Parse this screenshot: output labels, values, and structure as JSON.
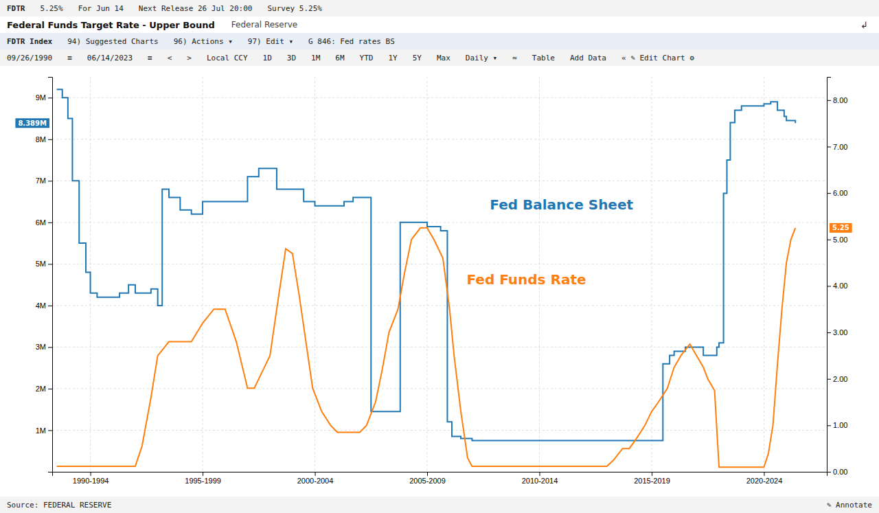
{
  "chart_data": {
    "type": "line",
    "title": "Federal Funds Target Rate - Upper Bound",
    "subtitle": "Federal Reserve",
    "annotations": [
      [
        "FDTR",
        "5.25%",
        "For Jun 14",
        "Next Release  26 Jul 20:00",
        "Survey  5.25%"
      ],
      [
        "↲"
      ],
      [
        "FDTR Index",
        "94) Suggested Charts",
        "96) Actions ▾",
        "97) Edit ▾",
        "G 846: Fed rates BS"
      ],
      [
        "09/26/1990",
        "≡",
        "06/14/2023",
        "≡",
        "<",
        ">",
        "Local CCY",
        "1D",
        "3D",
        "1M",
        "6M",
        "YTD",
        "1Y",
        "5Y",
        "Max",
        "Daily ▾",
        "≈",
        "Table",
        "Add Data",
        "«  ✎ Edit Chart  ⚙"
      ],
      [
        "Source: FEDERAL RESERVE",
        "✎ Annotate"
      ]
    ],
    "value_boxes": [
      {
        "text": "8.389M",
        "value": 8.389,
        "axis": "y"
      },
      {
        "text": "5.25",
        "value": 5.25,
        "axis": "y2"
      }
    ],
    "grid": true,
    "xlim": [
      1990.3,
      2024.8
    ],
    "xticks": [
      {
        "value": 1992,
        "label": "1990-1994"
      },
      {
        "value": 1997,
        "label": "1995-1999"
      },
      {
        "value": 2002,
        "label": "2000-2004"
      },
      {
        "value": 2007,
        "label": "2005-2009"
      },
      {
        "value": 2012,
        "label": "2010-2014"
      },
      {
        "value": 2017,
        "label": "2015-2019"
      },
      {
        "value": 2022,
        "label": "2020-2024"
      }
    ],
    "ylim": [
      0,
      9.5
    ],
    "yticks": [
      {
        "value": 1,
        "label": "1M"
      },
      {
        "value": 2,
        "label": "2M"
      },
      {
        "value": 3,
        "label": "3M"
      },
      {
        "value": 4,
        "label": "4M"
      },
      {
        "value": 5,
        "label": "5M"
      },
      {
        "value": 6,
        "label": "6M"
      },
      {
        "value": 7,
        "label": "7M"
      },
      {
        "value": 8,
        "label": "8M"
      },
      {
        "value": 9,
        "label": "9M"
      }
    ],
    "y2lim": [
      0,
      8.5
    ],
    "y2ticks": [
      {
        "value": 0,
        "label": "0.00"
      },
      {
        "value": 1,
        "label": "1.00"
      },
      {
        "value": 2,
        "label": "2.00"
      },
      {
        "value": 3,
        "label": "3.00"
      },
      {
        "value": 4,
        "label": "4.00"
      },
      {
        "value": 5,
        "label": "5.00"
      },
      {
        "value": 6,
        "label": "6.00"
      },
      {
        "value": 7,
        "label": "7.00"
      },
      {
        "value": 8,
        "label": "8.00"
      }
    ],
    "series": [
      {
        "name": "Fed Balance Sheet",
        "type": "step",
        "x": [
          1990.5,
          1990.75,
          1991.0,
          1991.2,
          1991.5,
          1991.8,
          1992.0,
          1992.3,
          1992.7,
          1993.0,
          1993.3,
          1993.7,
          1994.0,
          1994.3,
          1994.7,
          1995.0,
          1995.2,
          1995.5,
          1996.0,
          1996.5,
          1997.0,
          1997.5,
          1998.0,
          1998.5,
          1999.0,
          1999.5,
          2000.0,
          2000.3,
          2001.0,
          2001.5,
          2002.0,
          2002.5,
          2003.0,
          2003.3,
          2003.7,
          2004.0,
          2004.2,
          2004.45,
          2004.5,
          2004.55,
          2005.0,
          2005.5,
          2005.8,
          2006.0,
          2006.3,
          2006.5,
          2007.0,
          2007.3,
          2007.6,
          2007.9,
          2008.1,
          2008.5,
          2009.0,
          2009.3,
          2009.5,
          2010.0,
          2011.0,
          2012.0,
          2013.0,
          2014.0,
          2015.0,
          2016.0,
          2017.0,
          2017.5,
          2017.8,
          2018.0,
          2018.5,
          2019.0,
          2019.3,
          2019.6,
          2019.9,
          2020.0,
          2020.2,
          2020.35,
          2020.5,
          2020.7,
          2021.0,
          2021.3,
          2021.7,
          2022.0,
          2022.3,
          2022.6,
          2022.9,
          2023.0,
          2023.4
        ],
        "values": [
          9.2,
          9.0,
          8.5,
          7.0,
          5.5,
          4.8,
          4.3,
          4.2,
          4.2,
          4.2,
          4.3,
          4.5,
          4.3,
          4.3,
          4.4,
          4.0,
          6.8,
          6.6,
          6.3,
          6.2,
          6.5,
          6.5,
          6.5,
          6.5,
          7.1,
          7.3,
          7.3,
          6.8,
          6.8,
          6.5,
          6.4,
          6.4,
          6.4,
          6.5,
          6.6,
          6.6,
          6.6,
          6.6,
          1.45,
          1.45,
          1.45,
          1.45,
          6.0,
          6.0,
          6.0,
          6.0,
          5.9,
          5.9,
          5.8,
          1.2,
          0.85,
          0.8,
          0.75,
          0.75,
          0.75,
          0.75,
          0.75,
          0.75,
          0.75,
          0.75,
          0.75,
          0.75,
          0.75,
          2.6,
          2.8,
          2.9,
          3.0,
          3.0,
          2.8,
          2.8,
          3.0,
          3.1,
          6.7,
          7.5,
          8.4,
          8.7,
          8.8,
          8.8,
          8.8,
          8.85,
          8.9,
          8.7,
          8.55,
          8.45,
          8.39
        ]
      },
      {
        "name": "Fed Funds Rate",
        "type": "line",
        "axis": "y2",
        "x": [
          1990.5,
          1991.0,
          1991.5,
          1992.0,
          1992.5,
          1993.0,
          1993.5,
          1994.0,
          1994.3,
          1994.7,
          1995.0,
          1995.5,
          1996.0,
          1996.5,
          1997.0,
          1997.5,
          1998.0,
          1998.5,
          1999.0,
          1999.3,
          1999.7,
          2000.0,
          2000.3,
          2000.7,
          2001.0,
          2001.3,
          2001.6,
          2001.9,
          2002.3,
          2002.7,
          2003.0,
          2003.5,
          2004.0,
          2004.3,
          2004.7,
          2005.0,
          2005.3,
          2005.7,
          2006.0,
          2006.3,
          2006.7,
          2007.0,
          2007.3,
          2007.7,
          2008.0,
          2008.2,
          2008.5,
          2008.8,
          2009.0,
          2009.5,
          2010.0,
          2011.0,
          2012.0,
          2013.0,
          2014.0,
          2015.0,
          2015.3,
          2015.7,
          2016.0,
          2016.3,
          2016.7,
          2017.0,
          2017.3,
          2017.7,
          2018.0,
          2018.3,
          2018.7,
          2019.0,
          2019.3,
          2019.5,
          2019.8,
          2020.0,
          2020.2,
          2020.3,
          2020.5,
          2020.8,
          2021.0,
          2021.5,
          2022.0,
          2022.2,
          2022.4,
          2022.6,
          2022.8,
          2023.0,
          2023.2,
          2023.4
        ],
        "values": [
          0.12,
          0.12,
          0.12,
          0.12,
          0.12,
          0.12,
          0.12,
          0.12,
          0.55,
          1.6,
          2.5,
          2.8,
          2.8,
          2.8,
          3.2,
          3.5,
          3.5,
          2.8,
          1.8,
          1.8,
          2.2,
          2.5,
          3.5,
          4.8,
          4.7,
          3.8,
          2.8,
          1.8,
          1.3,
          1.0,
          0.85,
          0.85,
          0.85,
          1.0,
          1.5,
          2.2,
          3.0,
          3.5,
          4.3,
          5.0,
          5.25,
          5.25,
          5.0,
          4.6,
          3.5,
          2.5,
          1.3,
          0.3,
          0.12,
          0.12,
          0.12,
          0.12,
          0.12,
          0.12,
          0.12,
          0.12,
          0.25,
          0.5,
          0.5,
          0.7,
          1.0,
          1.3,
          1.5,
          1.8,
          2.25,
          2.5,
          2.75,
          2.5,
          2.25,
          2.0,
          1.75,
          0.1,
          0.1,
          0.1,
          0.1,
          0.1,
          0.1,
          0.1,
          0.1,
          0.4,
          1.0,
          2.3,
          3.5,
          4.5,
          5.0,
          5.25
        ]
      }
    ]
  }
}
